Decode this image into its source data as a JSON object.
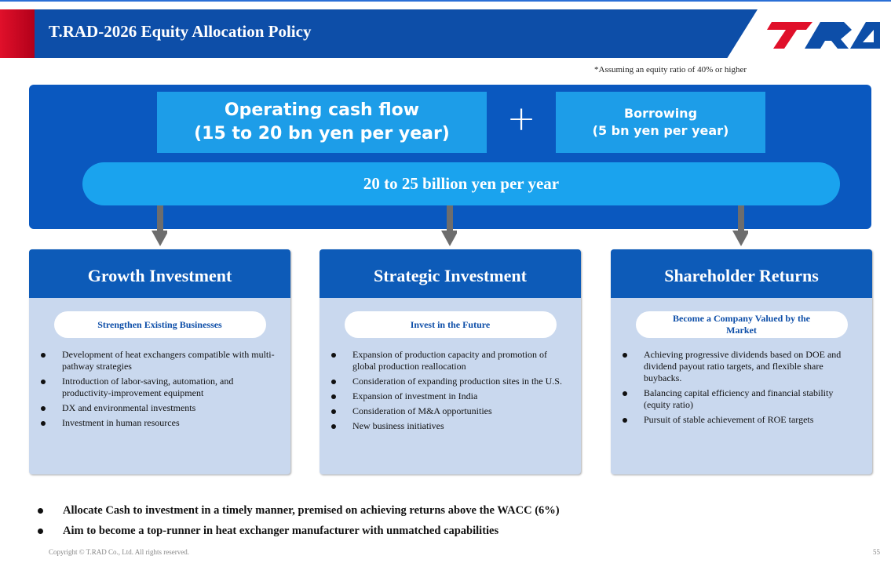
{
  "header": {
    "title": "T.RAD-2026 Equity Allocation Policy"
  },
  "note": "*Assuming an equity ratio of 40% or higher",
  "sources": {
    "operating": {
      "label": "Operating cash flow",
      "amount": "(15 to 20 bn yen per year)"
    },
    "plus": "+",
    "borrowing": {
      "label": "Borrowing",
      "amount": "(5 bn yen per year)"
    },
    "total": "20 to 25 billion yen per year"
  },
  "columns": [
    {
      "title": "Growth Investment",
      "subtitle": "Strengthen Existing Businesses",
      "bullets": [
        "Development of heat exchangers compatible with multi-pathway strategies",
        "Introduction of labor-saving, automation, and productivity-improvement equipment",
        "DX and environmental investments",
        "Investment in human resources"
      ]
    },
    {
      "title": "Strategic Investment",
      "subtitle": "Invest in the Future",
      "bullets": [
        "Expansion of production capacity and promotion of global production reallocation",
        "Consideration of expanding production sites in the U.S.",
        "Expansion of investment in India",
        "Consideration of M&A opportunities",
        "New business initiatives"
      ]
    },
    {
      "title": "Shareholder Returns",
      "subtitle": "Become a Company Valued by the Market",
      "bullets": [
        "Achieving progressive dividends based on DOE and dividend payout ratio targets, and flexible share buybacks.",
        "Balancing capital efficiency and financial stability (equity ratio)",
        "Pursuit of stable achievement of ROE targets"
      ]
    }
  ],
  "summary": [
    "Allocate Cash to investment in a timely manner, premised on achieving returns above the WACC (6%)",
    "Aim to become a top-runner in heat exchanger manufacturer with unmatched capabilities"
  ],
  "footer": {
    "copyright": "Copyright © T.RAD Co., Ltd. All rights reserved.",
    "page": "55"
  }
}
